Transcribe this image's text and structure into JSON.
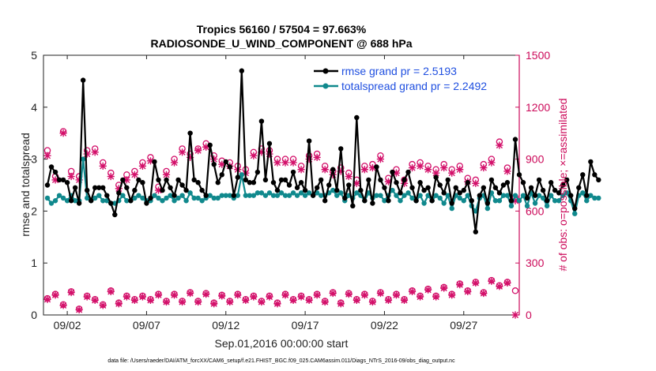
{
  "chart_data": {
    "type": "line",
    "title": [
      "Tropics 56160 / 57504 = 97.663%",
      "RADIOSONDE_U_WIND_COMPONENT @ 688 hPa"
    ],
    "xlabel": "Sep.01,2016 00:00:00 start",
    "ylabel_left": "rmse and totalspread",
    "ylabel_right": "# of obs: o=possible; ×=assimilated",
    "footnote": "data file: /Users/raeder/DAI/ATM_forcXX/CAM6_setup/f.e21.FHIST_BGC.f09_025.CAM6assim.011/Diags_NTrS_2016-09/obs_diag_output.nc",
    "xlim": [
      0.5,
      30.5
    ],
    "x_ticks": [
      {
        "x": 2,
        "label": "09/02"
      },
      {
        "x": 7,
        "label": "09/07"
      },
      {
        "x": 12,
        "label": "09/12"
      },
      {
        "x": 17,
        "label": "09/17"
      },
      {
        "x": 22,
        "label": "09/22"
      },
      {
        "x": 27,
        "label": "09/27"
      }
    ],
    "ylim_left": [
      0,
      5
    ],
    "y_ticks_left": [
      "0",
      "1",
      "2",
      "3",
      "4",
      "5"
    ],
    "ylim_right": [
      0,
      1500
    ],
    "y_ticks_right": [
      "0",
      "300",
      "600",
      "900",
      "1200",
      "1500"
    ],
    "legend": {
      "position": "top-right",
      "entries": [
        "rmse grand pr = 2.5193",
        "totalspread grand pr = 2.2492"
      ]
    },
    "colors": {
      "rmse": "#000000",
      "spread": "#10898d",
      "obs": "#d3106a",
      "legend_text": "#1f4fe0",
      "right_axis": "#cc0a5a"
    },
    "x_start": 0.75,
    "x_step": 0.25,
    "rmse": [
      2.5,
      2.85,
      2.75,
      2.6,
      2.6,
      2.55,
      2.2,
      2.45,
      2.15,
      4.52,
      2.4,
      2.2,
      2.45,
      2.45,
      2.45,
      2.3,
      2.15,
      1.93,
      2.35,
      2.6,
      2.45,
      2.2,
      2.4,
      2.6,
      2.55,
      2.15,
      2.25,
      2.95,
      2.6,
      2.4,
      2.6,
      2.45,
      2.3,
      2.6,
      2.5,
      2.4,
      3.5,
      2.6,
      2.55,
      2.4,
      2.3,
      3.27,
      2.9,
      2.55,
      2.7,
      2.95,
      2.85,
      2.3,
      2.65,
      4.7,
      2.6,
      2.55,
      2.55,
      2.75,
      3.73,
      2.6,
      3.3,
      2.55,
      2.4,
      2.6,
      2.6,
      2.5,
      2.75,
      2.45,
      2.55,
      2.4,
      3.35,
      2.3,
      2.45,
      2.6,
      2.2,
      2.5,
      2.8,
      2.4,
      3.2,
      2.25,
      2.5,
      2.1,
      3.8,
      2.4,
      2.2,
      2.6,
      2.15,
      2.85,
      2.6,
      2.45,
      2.2,
      2.75,
      2.55,
      2.35,
      2.6,
      2.75,
      2.45,
      2.2,
      2.55,
      2.4,
      2.45,
      2.2,
      2.65,
      2.5,
      2.35,
      2.6,
      2.15,
      2.45,
      2.35,
      2.4,
      2.55,
      2.2,
      1.6,
      2.3,
      2.45,
      2.15,
      2.6,
      2.45,
      2.35,
      2.5,
      2.55,
      2.2,
      3.38,
      2.7,
      2.55,
      2.25,
      2.45,
      2.3,
      2.6,
      2.4,
      2.2,
      2.55,
      2.4,
      2.35,
      2.5,
      2.6,
      2.3,
      2.05,
      2.45,
      2.7,
      2.3,
      2.95,
      2.7,
      2.6
    ],
    "spread": [
      2.25,
      2.15,
      2.2,
      2.3,
      2.25,
      2.2,
      2.3,
      2.2,
      2.2,
      3.0,
      2.25,
      2.2,
      2.25,
      2.3,
      2.2,
      2.2,
      2.15,
      2.15,
      2.2,
      2.3,
      2.2,
      2.2,
      2.25,
      2.3,
      2.25,
      2.2,
      2.2,
      2.3,
      2.25,
      2.2,
      2.25,
      2.3,
      2.2,
      2.25,
      2.3,
      2.2,
      2.35,
      2.25,
      2.25,
      2.2,
      2.25,
      2.3,
      2.25,
      2.25,
      2.3,
      2.3,
      2.3,
      2.25,
      2.3,
      2.7,
      2.3,
      2.3,
      2.3,
      2.35,
      2.35,
      2.3,
      2.35,
      2.3,
      2.3,
      2.35,
      2.3,
      2.3,
      2.35,
      2.3,
      2.35,
      2.3,
      2.35,
      2.3,
      2.35,
      2.3,
      2.3,
      2.35,
      2.4,
      2.3,
      2.35,
      2.2,
      2.3,
      2.25,
      2.35,
      2.3,
      2.2,
      2.35,
      2.25,
      2.3,
      2.3,
      2.2,
      2.3,
      2.4,
      2.3,
      2.2,
      2.3,
      2.35,
      2.25,
      2.2,
      2.3,
      2.15,
      2.3,
      2.2,
      2.3,
      2.25,
      2.15,
      2.3,
      2.05,
      2.3,
      2.25,
      2.2,
      2.3,
      2.1,
      2.0,
      2.25,
      2.3,
      2.05,
      2.35,
      2.2,
      2.2,
      2.3,
      2.3,
      2.1,
      2.3,
      2.2,
      2.3,
      2.1,
      2.35,
      2.15,
      2.3,
      2.25,
      2.1,
      2.3,
      2.2,
      2.2,
      2.3,
      2.35,
      2.2,
      1.95,
      2.3,
      2.35,
      2.2,
      2.3,
      2.25,
      2.25
    ],
    "obs_x_start": 0.75,
    "obs_x_step": 0.5,
    "obs_high_possible": [
      950,
      800,
      1060,
      830,
      800,
      950,
      960,
      880,
      820,
      750,
      810,
      830,
      880,
      910,
      740,
      830,
      900,
      960,
      930,
      960,
      990,
      920,
      890,
      880,
      860,
      840,
      940,
      960,
      950,
      900,
      900,
      900,
      860,
      920,
      930,
      860,
      830,
      850,
      820,
      780,
      860,
      870,
      920,
      790,
      840,
      780,
      870,
      880,
      860,
      840,
      870,
      840,
      860,
      790,
      780,
      870,
      900,
      1000,
      850,
      680
    ],
    "obs_high_assim": [
      920,
      780,
      1050,
      800,
      780,
      930,
      940,
      860,
      800,
      730,
      780,
      810,
      860,
      890,
      720,
      810,
      880,
      940,
      910,
      950,
      970,
      900,
      870,
      860,
      840,
      820,
      920,
      940,
      930,
      880,
      880,
      880,
      840,
      900,
      910,
      840,
      810,
      830,
      800,
      760,
      840,
      850,
      900,
      770,
      820,
      760,
      850,
      860,
      840,
      820,
      850,
      820,
      840,
      770,
      760,
      850,
      880,
      980,
      830,
      660
    ],
    "obs_low_possible": [
      95,
      120,
      60,
      135,
      35,
      110,
      90,
      60,
      140,
      70,
      110,
      90,
      110,
      90,
      120,
      80,
      120,
      80,
      130,
      80,
      125,
      70,
      115,
      80,
      120,
      90,
      110,
      80,
      110,
      70,
      120,
      90,
      110,
      90,
      120,
      80,
      130,
      70,
      125,
      90,
      120,
      80,
      130,
      90,
      120,
      90,
      140,
      110,
      150,
      110,
      160,
      120,
      180,
      140,
      190,
      130,
      200,
      170,
      190,
      140
    ],
    "obs_low_assim": [
      90,
      115,
      55,
      130,
      30,
      105,
      85,
      55,
      135,
      65,
      105,
      85,
      105,
      85,
      115,
      75,
      115,
      75,
      125,
      75,
      120,
      65,
      110,
      75,
      115,
      85,
      105,
      75,
      105,
      65,
      115,
      85,
      105,
      85,
      115,
      75,
      125,
      65,
      120,
      85,
      115,
      75,
      125,
      85,
      115,
      85,
      135,
      105,
      145,
      105,
      155,
      115,
      175,
      135,
      185,
      125,
      195,
      165,
      185,
      0
    ]
  }
}
